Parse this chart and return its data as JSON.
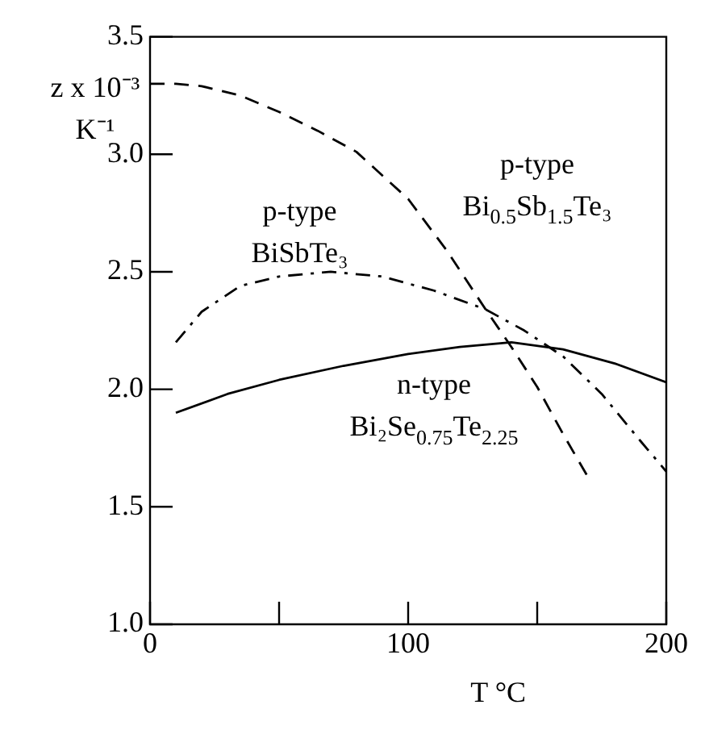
{
  "chart_data": {
    "type": "line",
    "xlabel": "T °C",
    "ylabel": "z x 10⁻³\nK⁻¹",
    "xlim": [
      0,
      200
    ],
    "ylim": [
      1.0,
      3.5
    ],
    "xticks": [
      0,
      {
        "value": 50,
        "label": null
      },
      100,
      {
        "value": 150,
        "label": null
      },
      200
    ],
    "yticks": [
      {
        "value": 1,
        "label": "1.0"
      },
      1.5,
      {
        "value": 2,
        "label": "2.0"
      },
      2.5,
      {
        "value": 3,
        "label": "3.0"
      },
      3.5
    ],
    "grid": false,
    "legend": false,
    "marker": "none",
    "series": [
      {
        "name": "p-type\nBi$_{0.5}$Sb$_{1.5}$Te₃",
        "color": "#000000",
        "line_style": "dashed",
        "x": [
          0,
          10,
          20,
          35,
          50,
          65,
          80,
          100,
          115,
          130,
          140,
          150,
          160,
          170
        ],
        "values": [
          3.3,
          3.3,
          3.29,
          3.25,
          3.18,
          3.1,
          3.01,
          2.81,
          2.59,
          2.34,
          2.18,
          2.01,
          1.81,
          1.62
        ]
      },
      {
        "name": "p-type\nBiSbTe₃",
        "color": "#000000",
        "line_style": "dashdot",
        "x": [
          10,
          20,
          35,
          50,
          70,
          90,
          110,
          130,
          145,
          160,
          175,
          190,
          200
        ],
        "values": [
          2.2,
          2.33,
          2.44,
          2.48,
          2.5,
          2.48,
          2.42,
          2.34,
          2.25,
          2.14,
          1.98,
          1.78,
          1.65
        ]
      },
      {
        "name": "n-type\nBi₂Se$_{0.75}$Te$_{2.25}$",
        "color": "#000000",
        "line_style": "solid",
        "x": [
          10,
          30,
          50,
          75,
          100,
          120,
          140,
          160,
          180,
          200
        ],
        "values": [
          1.9,
          1.98,
          2.04,
          2.1,
          2.15,
          2.18,
          2.2,
          2.17,
          2.11,
          2.03
        ]
      }
    ]
  }
}
